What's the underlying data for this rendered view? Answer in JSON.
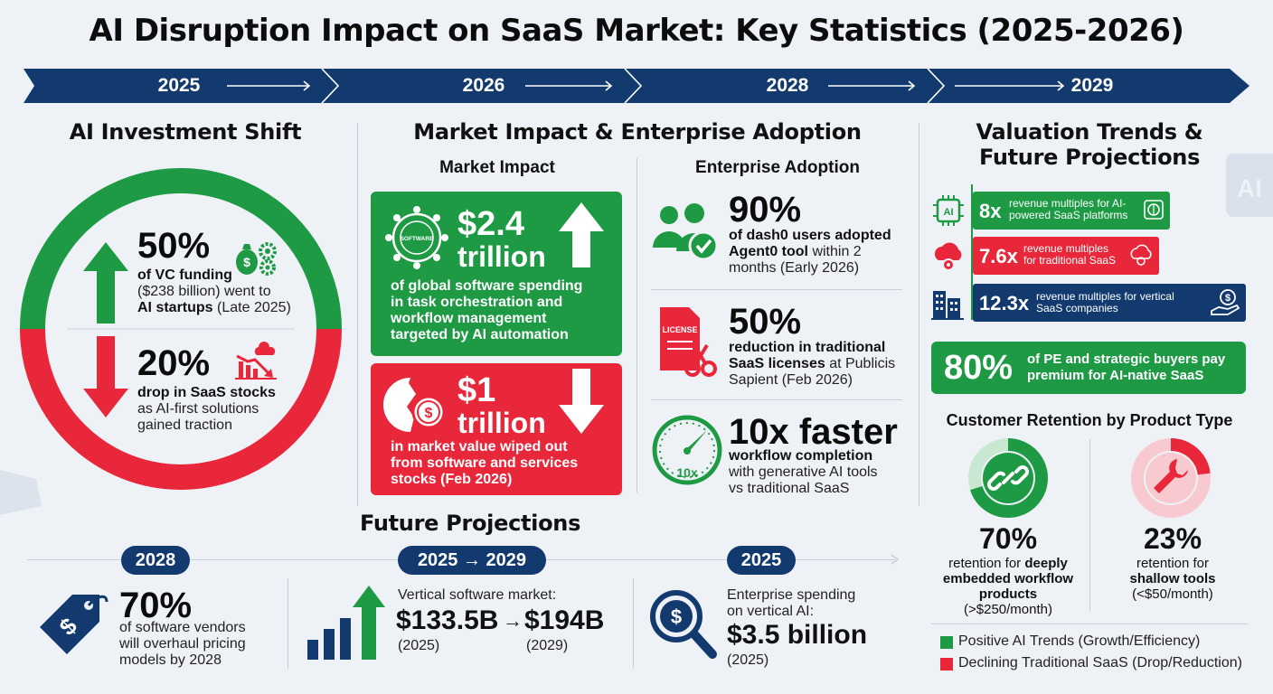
{
  "title": "AI Disruption Impact on SaaS Market: Key Statistics (2025-2026)",
  "timeline": [
    "2025",
    "2026",
    "2028",
    "2029"
  ],
  "colors": {
    "navy": "#133a6e",
    "green": "#1e9a45",
    "red": "#e8283a"
  },
  "investment": {
    "heading": "AI Investment Shift",
    "vc": {
      "value": "50%",
      "line1": "of VC funding",
      "line2": "($238 billion) went to",
      "bold3": "AI startups",
      "rest3": " (Late 2025)"
    },
    "stocks": {
      "value": "20%",
      "bold1": "drop in SaaS stocks",
      "line2": "as AI-first solutions",
      "line3": "gained traction"
    }
  },
  "market": {
    "heading": "Market Impact & Enterprise Adoption",
    "impact_heading": "Market Impact",
    "adoption_heading": "Enterprise Adoption",
    "card1": {
      "value_top": "$2.4",
      "value_bottom": "trillion",
      "badge": "SOFTWARE",
      "l1": "of global software spending",
      "l2": "in task orchestration and",
      "l3": "workflow management",
      "l4": "targeted by AI automation"
    },
    "card2": {
      "value_top": "$1",
      "value_bottom": "trillion",
      "l1": "in market value wiped out",
      "l2": "from software and services",
      "l3": "stocks (Feb 2026)"
    },
    "adopt1": {
      "value": "90%",
      "bold1": "of dash0 users adopted",
      "bold2": "Agent0 tool",
      "rest2": " within 2",
      "line3": "months (Early 2026)"
    },
    "adopt2": {
      "value": "50%",
      "badge": "LICENSE",
      "bold1": "reduction in traditional",
      "bold2": "SaaS licenses",
      "rest2": " at Publicis",
      "line3": "Sapient (Feb 2026)"
    },
    "adopt3": {
      "value": "10x faster",
      "gauge": "10x",
      "bold1": "workflow completion",
      "line2": "with generative AI tools",
      "line3": "vs traditional SaaS"
    }
  },
  "valuation": {
    "heading1": "Valuation Trends &",
    "heading2": "Future Projections",
    "rows": [
      {
        "badge": "AI",
        "value": "8x",
        "l1": "revenue multiples for AI-",
        "l2": "powered SaaS platforms"
      },
      {
        "value": "7.6x",
        "l1": "revenue multiples",
        "l2": "for traditional SaaS"
      },
      {
        "value": "12.3x",
        "l1": "revenue multiples for vertical",
        "l2": "SaaS companies"
      }
    ],
    "pe": {
      "value": "80%",
      "l1": "of PE and strategic buyers pay",
      "l2": "premium for AI-native SaaS"
    },
    "retention_heading": "Customer Retention by Product Type",
    "ret1": {
      "value": "70%",
      "level": 0.7,
      "l1": "retention for ",
      "b1": "deeply",
      "b2": "embedded workflow",
      "b3": "products",
      "l4": "(>$250/month)"
    },
    "ret2": {
      "value": "23%",
      "level": 0.23,
      "l1": "retention for",
      "b2": "shallow tools",
      "l3": "(<$50/month)"
    },
    "legend": [
      "Positive AI Trends (Growth/Efficiency)",
      "Declining Traditional SaaS (Drop/Reduction)"
    ]
  },
  "projections": {
    "heading": "Future Projections",
    "p1": {
      "pill": "2028",
      "value": "70%",
      "l1": "of software vendors",
      "l2": "will overhaul pricing",
      "l3": "models by 2028"
    },
    "p2": {
      "pill": "2025 → 2029",
      "l1": "Vertical software market:",
      "v1": "$133.5B",
      "arrow": "→",
      "v2": "$194B",
      "y1": "(2025)",
      "y2": "(2029)"
    },
    "p3": {
      "pill": "2025",
      "l1": "Enterprise spending",
      "l2": "on vertical AI:",
      "value": "$3.5 billion",
      "l3": "(2025)"
    }
  }
}
